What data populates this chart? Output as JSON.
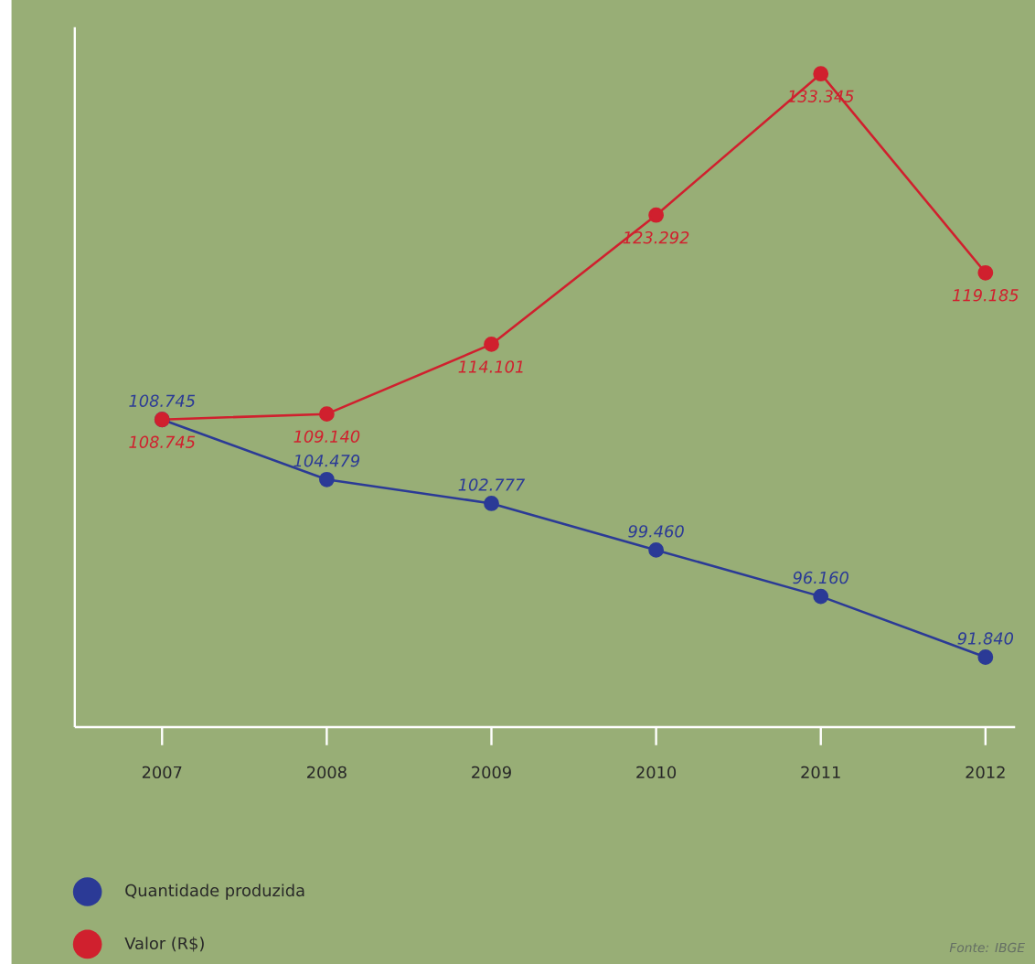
{
  "chart_data": {
    "type": "line",
    "categories": [
      "2007",
      "2008",
      "2009",
      "2010",
      "2011",
      "2012"
    ],
    "series": [
      {
        "name": "Quantidade produzida",
        "color": "#2b3a96",
        "values": [
          108745,
          104479,
          102777,
          99460,
          96160,
          91840
        ],
        "value_labels": [
          "108.745",
          "104.479",
          "102.777",
          "99.460",
          "96.160",
          "91.840"
        ]
      },
      {
        "name": "Valor (R$)",
        "color": "#d0202e",
        "values": [
          108745,
          109140,
          114101,
          123292,
          133345,
          119185
        ],
        "value_labels": [
          "108.745",
          "109.140",
          "114.101",
          "123.292",
          "133.345",
          "119.185"
        ]
      }
    ],
    "marker": "circle",
    "line_style": "solid",
    "legend": "bottom left",
    "tick_labels": "x",
    "grid": false,
    "annotations": [
      "Fonte: IBGE"
    ]
  }
}
